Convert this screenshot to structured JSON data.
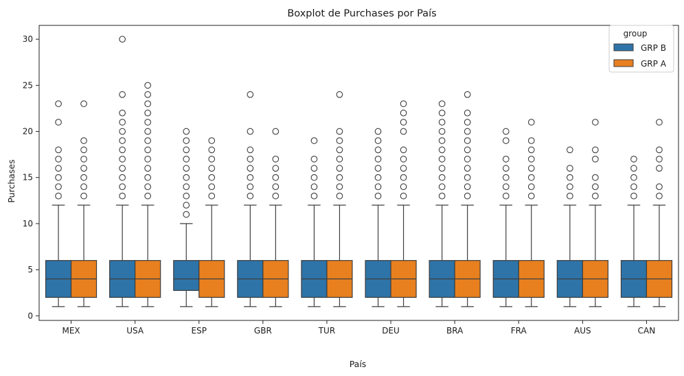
{
  "chart_data": {
    "type": "box",
    "title": "Boxplot de Purchases por País",
    "xlabel": "País",
    "ylabel": "Purchases",
    "ylim": [
      -0.5,
      31.5
    ],
    "yticks": [
      0,
      5,
      10,
      15,
      20,
      25,
      30
    ],
    "categories": [
      "MEX",
      "USA",
      "ESP",
      "GBR",
      "TUR",
      "DEU",
      "BRA",
      "FRA",
      "AUS",
      "CAN"
    ],
    "legend": {
      "title": "group",
      "position": "top-right"
    },
    "grid": false,
    "series": [
      {
        "name": "GRP B",
        "color": "#2e74a8",
        "boxes": [
          {
            "min": 1,
            "q1": 2,
            "median": 4,
            "q3": 6,
            "max": 12,
            "outliers": [
              13,
              14,
              15,
              16,
              17,
              18,
              21,
              23
            ]
          },
          {
            "min": 1,
            "q1": 2,
            "median": 4,
            "q3": 6,
            "max": 12,
            "outliers": [
              13,
              14,
              15,
              16,
              17,
              18,
              19,
              20,
              21,
              22,
              24,
              30
            ]
          },
          {
            "min": 1,
            "q1": 2.75,
            "median": 4,
            "q3": 6,
            "max": 10,
            "outliers": [
              11,
              12,
              13,
              14,
              15,
              16,
              17,
              18,
              19,
              20
            ]
          },
          {
            "min": 1,
            "q1": 2,
            "median": 4,
            "q3": 6,
            "max": 12,
            "outliers": [
              13,
              14,
              15,
              16,
              17,
              18,
              20,
              24
            ]
          },
          {
            "min": 1,
            "q1": 2,
            "median": 4,
            "q3": 6,
            "max": 12,
            "outliers": [
              13,
              14,
              15,
              16,
              17,
              19
            ]
          },
          {
            "min": 1,
            "q1": 2,
            "median": 4,
            "q3": 6,
            "max": 12,
            "outliers": [
              13,
              14,
              15,
              16,
              17,
              18,
              19,
              20
            ]
          },
          {
            "min": 1,
            "q1": 2,
            "median": 4,
            "q3": 6,
            "max": 12,
            "outliers": [
              13,
              14,
              15,
              16,
              17,
              18,
              19,
              20,
              21,
              22,
              23
            ]
          },
          {
            "min": 1,
            "q1": 2,
            "median": 4,
            "q3": 6,
            "max": 12,
            "outliers": [
              13,
              14,
              15,
              16,
              17,
              19,
              20
            ]
          },
          {
            "min": 1,
            "q1": 2,
            "median": 4,
            "q3": 6,
            "max": 12,
            "outliers": [
              13,
              14,
              15,
              16,
              18
            ]
          },
          {
            "min": 1,
            "q1": 2,
            "median": 4,
            "q3": 6,
            "max": 12,
            "outliers": [
              13,
              14,
              15,
              16,
              17
            ]
          }
        ]
      },
      {
        "name": "GRP A",
        "color": "#e8801f",
        "boxes": [
          {
            "min": 1,
            "q1": 2,
            "median": 4,
            "q3": 6,
            "max": 12,
            "outliers": [
              13,
              14,
              15,
              16,
              17,
              18,
              19,
              23
            ]
          },
          {
            "min": 1,
            "q1": 2,
            "median": 4,
            "q3": 6,
            "max": 12,
            "outliers": [
              13,
              14,
              15,
              16,
              17,
              18,
              19,
              20,
              21,
              22,
              23,
              24,
              25
            ]
          },
          {
            "min": 1,
            "q1": 2,
            "median": 4,
            "q3": 6,
            "max": 12,
            "outliers": [
              13,
              14,
              15,
              16,
              17,
              18,
              19
            ]
          },
          {
            "min": 1,
            "q1": 2,
            "median": 4,
            "q3": 6,
            "max": 12,
            "outliers": [
              13,
              14,
              15,
              16,
              17,
              20
            ]
          },
          {
            "min": 1,
            "q1": 2,
            "median": 4,
            "q3": 6,
            "max": 12,
            "outliers": [
              13,
              14,
              15,
              16,
              17,
              18,
              19,
              20,
              24
            ]
          },
          {
            "min": 1,
            "q1": 2,
            "median": 4,
            "q3": 6,
            "max": 12,
            "outliers": [
              13,
              14,
              15,
              16,
              17,
              18,
              20,
              21,
              22,
              23
            ]
          },
          {
            "min": 1,
            "q1": 2,
            "median": 4,
            "q3": 6,
            "max": 12,
            "outliers": [
              13,
              14,
              15,
              16,
              17,
              18,
              19,
              20,
              21,
              22,
              24
            ]
          },
          {
            "min": 1,
            "q1": 2,
            "median": 4,
            "q3": 6,
            "max": 12,
            "outliers": [
              13,
              14,
              15,
              16,
              17,
              18,
              19,
              21
            ]
          },
          {
            "min": 1,
            "q1": 2,
            "median": 4,
            "q3": 6,
            "max": 12,
            "outliers": [
              13,
              14,
              15,
              17,
              18,
              21
            ]
          },
          {
            "min": 1,
            "q1": 2,
            "median": 4,
            "q3": 6,
            "max": 12,
            "outliers": [
              13,
              14,
              16,
              17,
              18,
              21
            ]
          }
        ]
      }
    ]
  }
}
